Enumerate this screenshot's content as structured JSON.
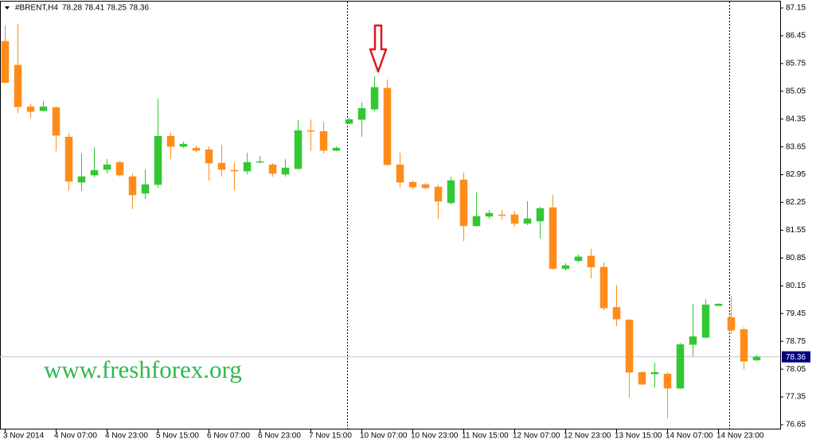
{
  "chart_data": {
    "type": "candlestick",
    "symbol": "#BRENT,H4",
    "watermark": "www.freshforex.org",
    "categories": [
      "3 Nov 2014",
      null,
      null,
      null,
      "4 Nov 07:00",
      null,
      null,
      null,
      "4 Nov 23:00",
      null,
      null,
      null,
      "5 Nov 15:00",
      null,
      null,
      null,
      "6 Nov 07:00",
      null,
      null,
      null,
      "6 Nov 23:00",
      null,
      null,
      null,
      "7 Nov 15:00",
      null,
      null,
      null,
      "10 Nov 07:00",
      null,
      null,
      null,
      "10 Nov 23:00",
      null,
      null,
      null,
      "11 Nov 15:00",
      null,
      null,
      null,
      "12 Nov 07:00",
      null,
      null,
      null,
      "12 Nov 23:00",
      null,
      null,
      null,
      "13 Nov 15:00",
      null,
      null,
      null,
      "14 Nov 07:00",
      null,
      null,
      null,
      "14 Nov 23:00",
      null,
      null,
      null
    ],
    "open": [
      86.31,
      85.71,
      84.66,
      84.56,
      84.64,
      83.9,
      82.76,
      82.94,
      83.08,
      83.26,
      82.9,
      82.48,
      82.7,
      83.92,
      83.66,
      83.62,
      83.58,
      83.24,
      83.06,
      83.04,
      83.26,
      83.2,
      82.96,
      83.1,
      84.06,
      84.04,
      83.56,
      84.24,
      84.34,
      84.6,
      85.13,
      83.2,
      82.76,
      82.7,
      82.64,
      82.24,
      82.82,
      81.66,
      81.9,
      81.94,
      81.94,
      81.72,
      81.78,
      82.12,
      80.58,
      80.78,
      80.9,
      80.62,
      79.61,
      79.29,
      77.97,
      77.93,
      77.93,
      77.57,
      78.67,
      78.85,
      79.65,
      79.35,
      79.05,
      78.28
    ],
    "high": [
      86.71,
      86.75,
      84.74,
      84.8,
      84.68,
      84.0,
      83.48,
      83.64,
      83.34,
      83.3,
      82.98,
      83.08,
      84.86,
      84.02,
      83.78,
      83.68,
      83.66,
      83.7,
      83.26,
      83.5,
      83.42,
      83.24,
      83.34,
      84.32,
      84.34,
      84.28,
      83.66,
      84.38,
      84.78,
      85.43,
      85.35,
      83.5,
      82.8,
      82.74,
      82.7,
      82.9,
      83.0,
      82.5,
      82.06,
      82.06,
      82.04,
      82.28,
      82.14,
      82.44,
      80.72,
      80.94,
      81.08,
      80.74,
      80.17,
      79.31,
      77.99,
      78.21,
      77.97,
      78.71,
      79.69,
      79.81,
      79.71,
      79.89,
      79.11,
      78.41
    ],
    "low": [
      85.25,
      84.5,
      84.38,
      84.54,
      83.54,
      82.54,
      82.54,
      82.88,
      82.98,
      82.9,
      82.08,
      82.34,
      82.62,
      83.34,
      83.62,
      83.52,
      82.8,
      82.9,
      82.56,
      82.96,
      83.24,
      82.9,
      82.9,
      83.08,
      83.54,
      83.48,
      83.54,
      84.22,
      83.9,
      84.54,
      83.18,
      82.62,
      82.58,
      82.58,
      81.84,
      82.2,
      81.28,
      81.64,
      81.84,
      81.82,
      81.64,
      81.68,
      81.34,
      80.56,
      80.54,
      80.74,
      80.34,
      79.53,
      79.13,
      77.33,
      77.65,
      77.59,
      76.81,
      77.55,
      78.37,
      78.83,
      79.63,
      78.93,
      78.05,
      78.25
    ],
    "close": [
      85.27,
      84.66,
      84.54,
      84.66,
      83.94,
      82.78,
      82.9,
      83.06,
      83.2,
      82.94,
      82.44,
      82.7,
      83.92,
      83.66,
      83.72,
      83.56,
      83.24,
      83.08,
      83.04,
      83.26,
      83.28,
      82.98,
      83.12,
      84.06,
      84.04,
      83.56,
      83.62,
      84.34,
      84.62,
      85.15,
      83.2,
      82.76,
      82.64,
      82.62,
      82.28,
      82.8,
      81.66,
      81.9,
      81.98,
      81.92,
      81.72,
      81.84,
      82.1,
      80.58,
      80.66,
      80.88,
      80.62,
      79.59,
      79.31,
      77.97,
      77.67,
      77.97,
      77.57,
      78.67,
      78.87,
      79.67,
      79.69,
      79.03,
      78.25,
      78.36
    ],
    "up_color": "#32c832",
    "down_color": "#ff8c1a",
    "ylim": [
      76.53,
      87.31
    ],
    "yticks": [
      87.15,
      86.45,
      85.75,
      85.05,
      84.35,
      83.65,
      82.95,
      82.25,
      81.55,
      80.85,
      80.15,
      79.45,
      78.75,
      78.05,
      77.35,
      76.65
    ]
  }
}
